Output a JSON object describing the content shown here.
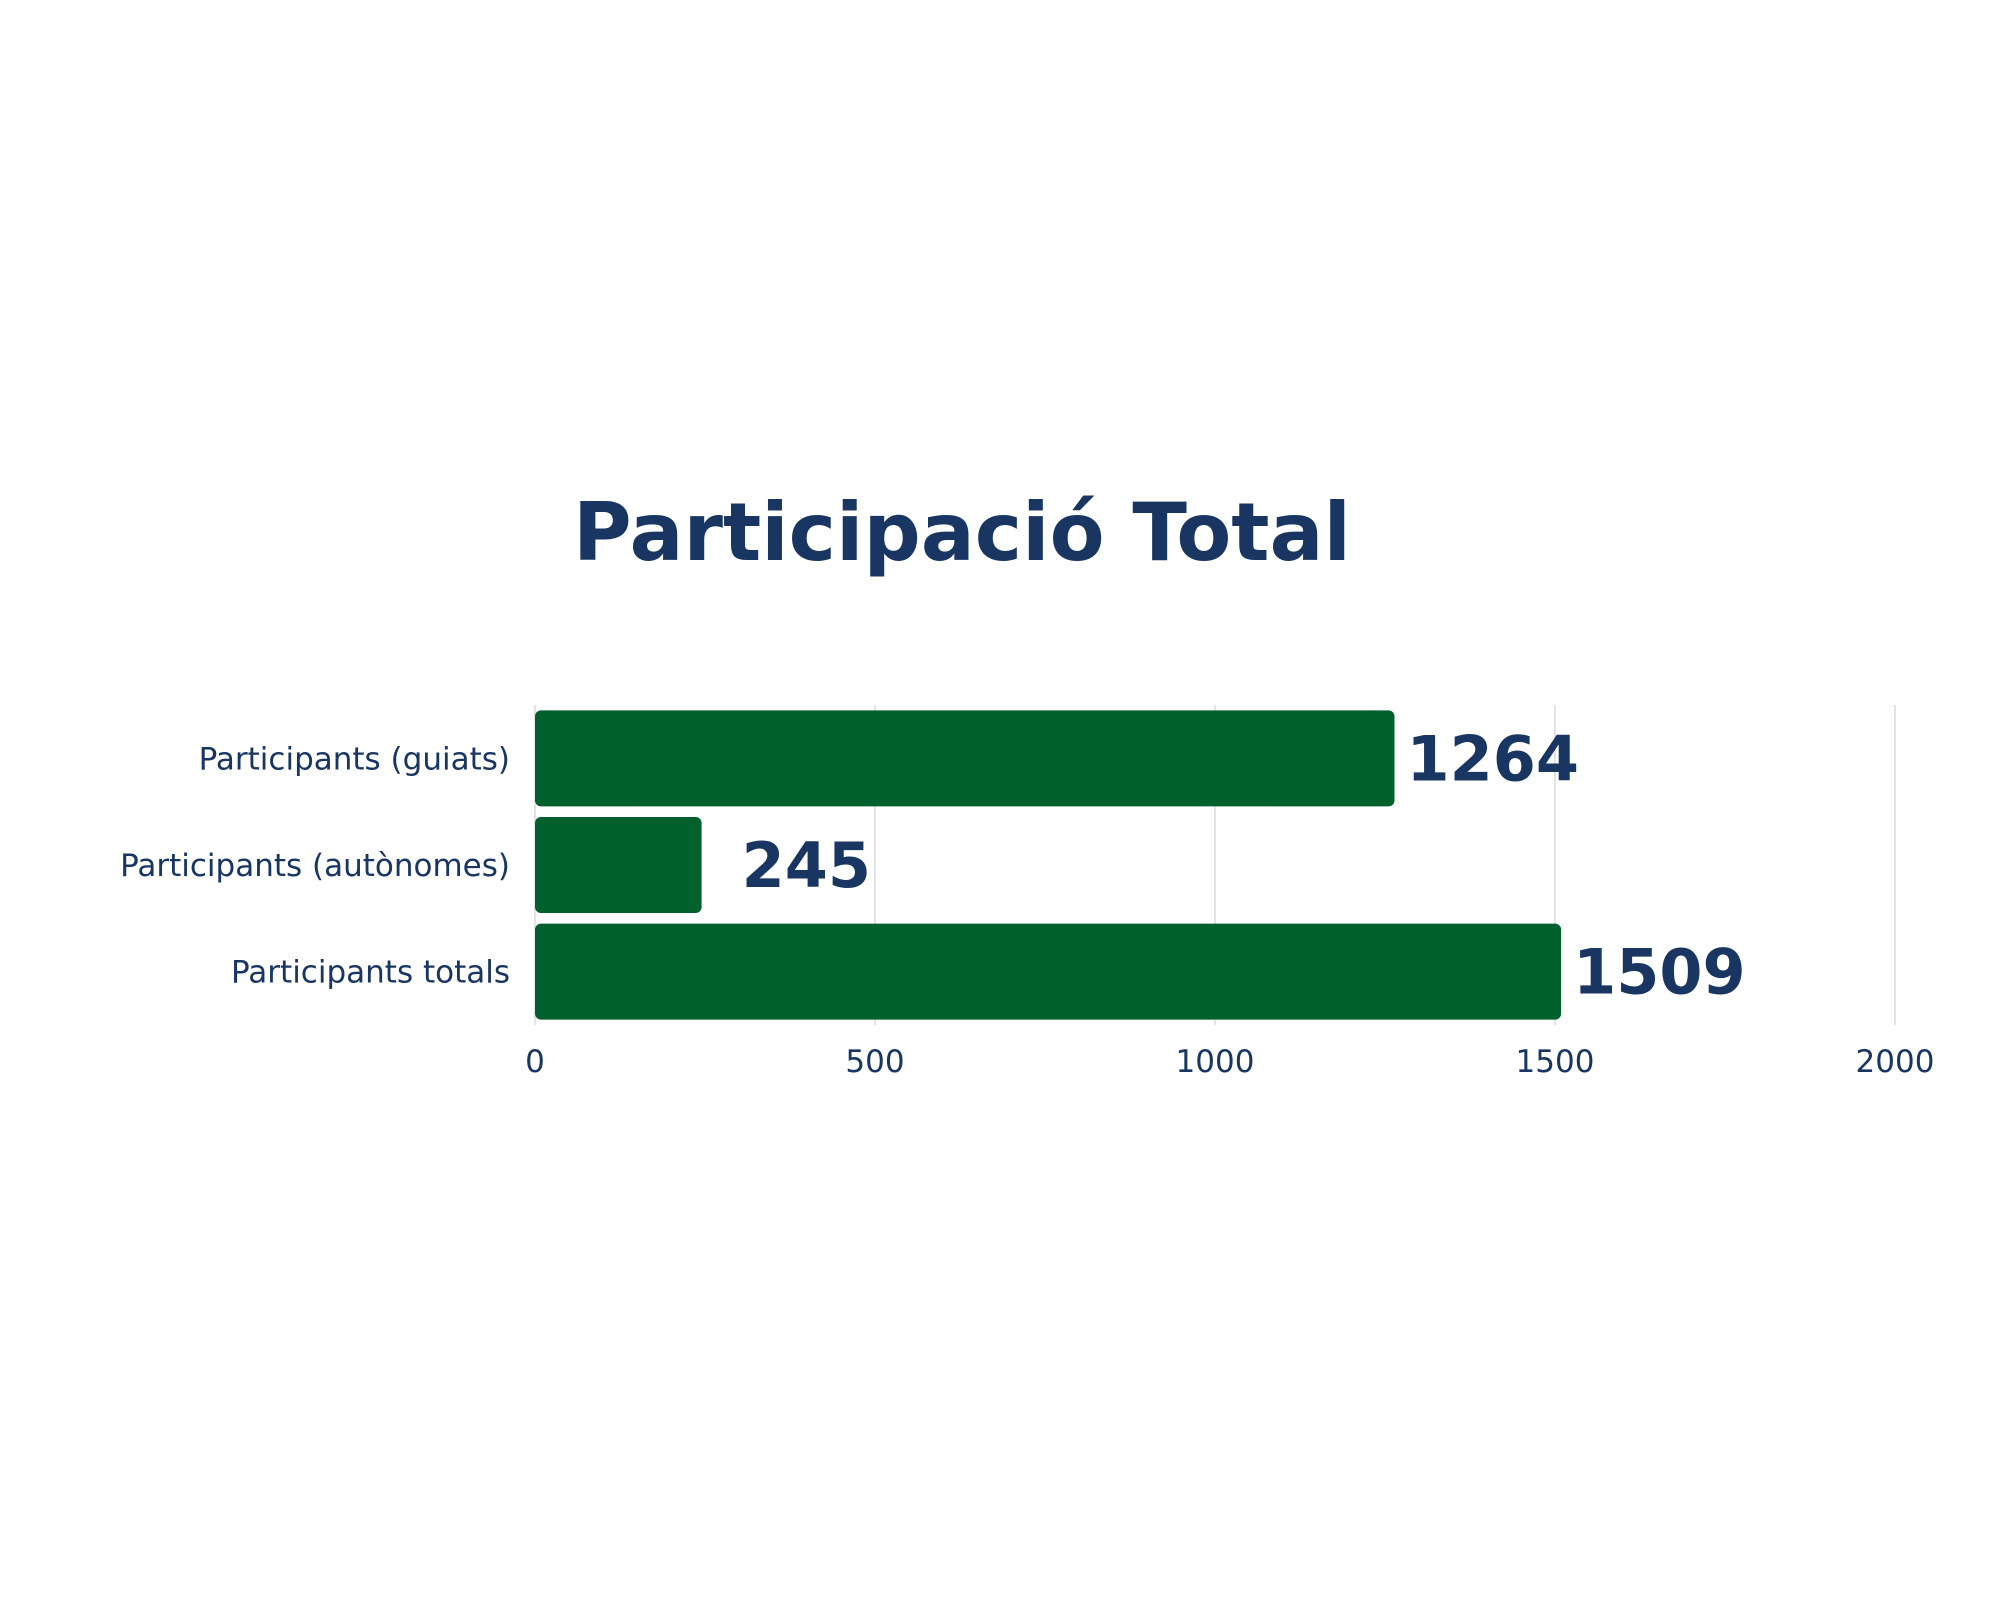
{
  "chart_data": {
    "type": "bar",
    "orientation": "horizontal",
    "title": "Participació Total",
    "xlabel": "",
    "ylabel": "",
    "categories": [
      "Participants (guiats)",
      "Participants (autònomes)",
      "Participants totals"
    ],
    "values": [
      1264,
      245,
      1509
    ],
    "value_labels": [
      "1264",
      "245",
      "1509"
    ],
    "xlim": [
      0,
      2000
    ],
    "x_ticks": [
      0,
      500,
      1000,
      1500,
      2000
    ],
    "x_tick_labels": [
      "0",
      "500",
      "1000",
      "1500",
      "2000"
    ],
    "grid": true,
    "colors": {
      "bar": "#02602c",
      "text": "#183661",
      "grid": "#d8dce3"
    }
  }
}
